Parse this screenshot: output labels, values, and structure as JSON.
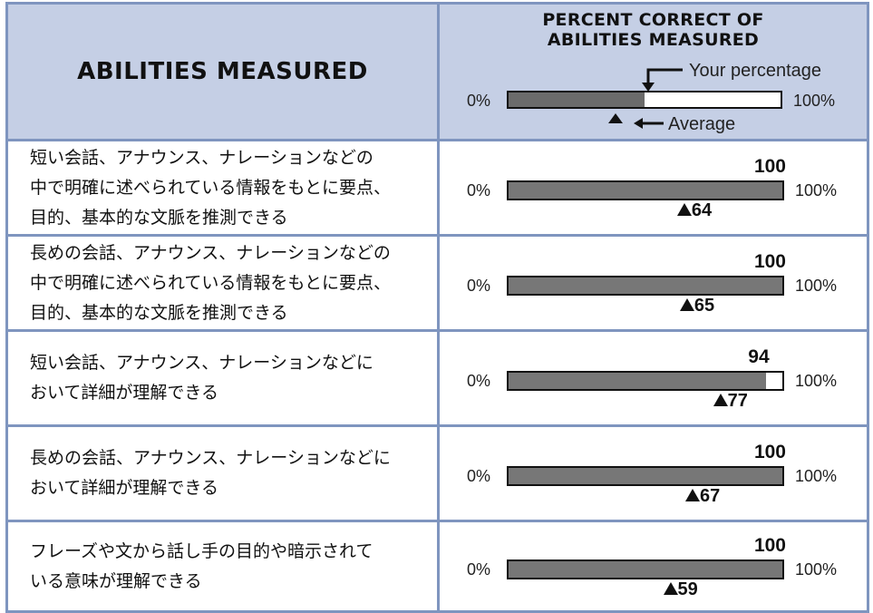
{
  "header": {
    "left_title": "ABILITIES MEASURED",
    "right_title_line1": "PERCENT CORRECT OF",
    "right_title_line2": "ABILITIES MEASURED",
    "key": {
      "your_percentage": "Your percentage",
      "average": "Average",
      "zero": "0%",
      "hundred": "100%"
    }
  },
  "rows": [
    {
      "ability": "短い会話、アナウンス、ナレーションなどの\n中で明確に述べられている情報をもとに要点、\n目的、基本的な文脈を推測できる",
      "score": 100,
      "average": 64,
      "zero": "0%",
      "hundred": "100%"
    },
    {
      "ability": "長めの会話、アナウンス、ナレーションなどの\n中で明確に述べられている情報をもとに要点、\n目的、基本的な文脈を推測できる",
      "score": 100,
      "average": 65,
      "zero": "0%",
      "hundred": "100%"
    },
    {
      "ability": "短い会話、アナウンス、ナレーションなどに\nおいて詳細が理解できる",
      "score": 94,
      "average": 77,
      "zero": "0%",
      "hundred": "100%"
    },
    {
      "ability": "長めの会話、アナウンス、ナレーションなどに\nおいて詳細が理解できる",
      "score": 100,
      "average": 67,
      "zero": "0%",
      "hundred": "100%"
    },
    {
      "ability": "フレーズや文から話し手の目的や暗示されて\nいる意味が理解できる",
      "score": 100,
      "average": 59,
      "zero": "0%",
      "hundred": "100%"
    }
  ],
  "colors": {
    "header_bg": "#c5cfe5",
    "border": "#7f95bf",
    "bar_fill": "#777777"
  }
}
